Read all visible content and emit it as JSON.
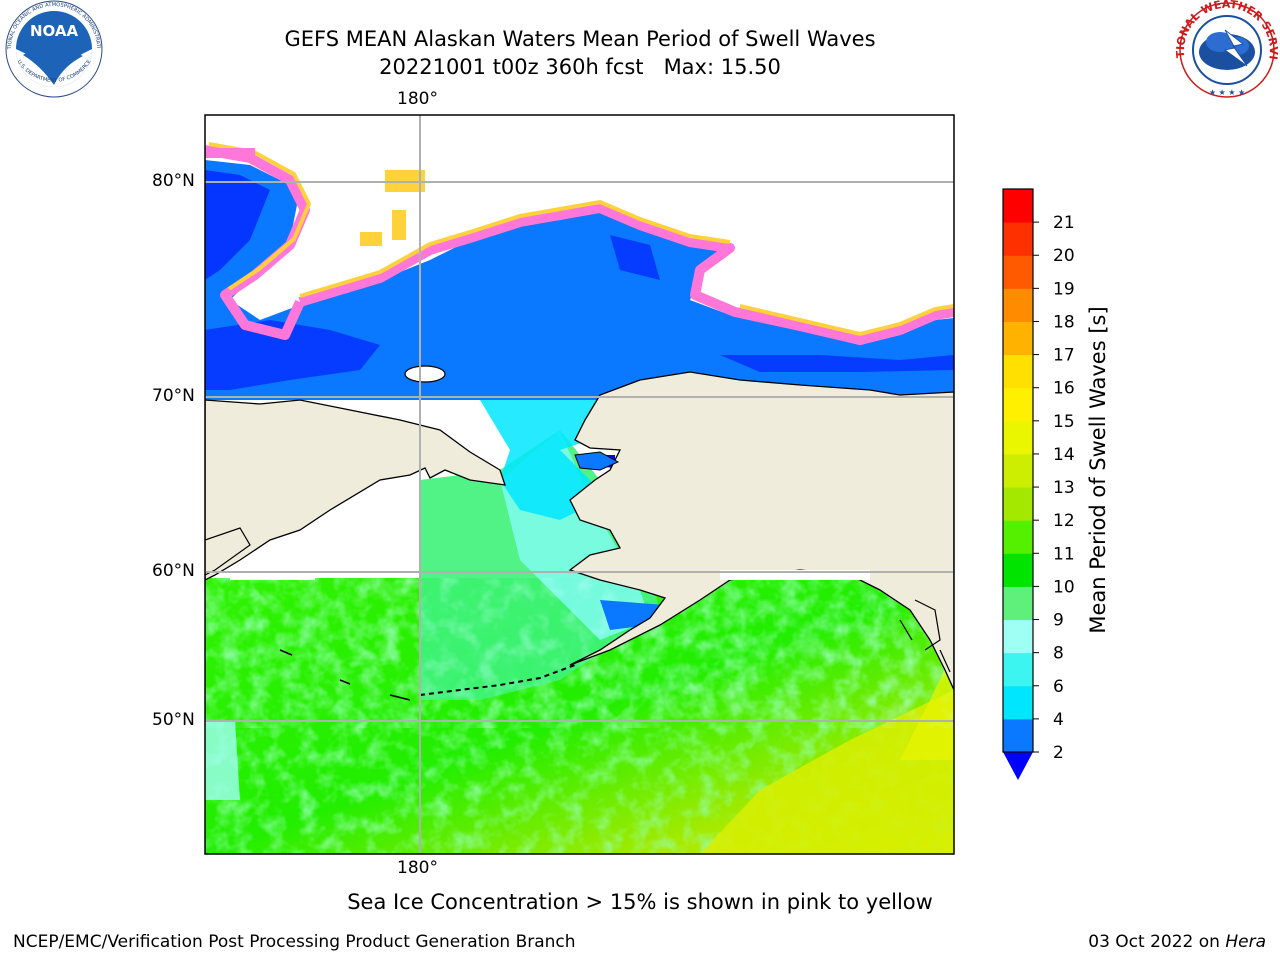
{
  "title": {
    "line1": "GEFS MEAN Alaskan Waters Mean Period of Swell Waves",
    "line2": "20221001 t00z 360h fcst   Max: 15.50"
  },
  "map": {
    "lon_labels": {
      "top": "180°",
      "bottom": "180°"
    },
    "lat_labels": [
      "80°N",
      "70°N",
      "60°N",
      "50°N"
    ]
  },
  "colorbar": {
    "title": "Mean Period of Swell Waves [s]",
    "ticks": [
      "2",
      "4",
      "6",
      "8",
      "9",
      "10",
      "11",
      "12",
      "13",
      "14",
      "15",
      "16",
      "17",
      "18",
      "19",
      "20",
      "21"
    ],
    "colors": [
      "#0a78ff",
      "#00e6ff",
      "#3cf5f0",
      "#a0fff5",
      "#5ef07a",
      "#00e400",
      "#55ef00",
      "#a4e800",
      "#cdee00",
      "#eaf500",
      "#fff000",
      "#ffe000",
      "#ffb300",
      "#ff8c00",
      "#ff5a00",
      "#ff3000",
      "#ff0000"
    ],
    "under_color": "#0000ff"
  },
  "footer_note": "Sea Ice Concentration > 15% is shown in pink to yellow",
  "credit_left": "NCEP/EMC/Verification Post Processing Product Generation Branch",
  "credit_right": {
    "date": "03 Oct 2022 on",
    "host": "Hera"
  },
  "logos": {
    "noaa": {
      "text": "NOAA",
      "ring_top": "NATIONAL OCEANIC AND ATMOSPHERIC ADMINISTRATION",
      "ring_bottom": "U.S. DEPARTMENT OF COMMERCE"
    },
    "nws": {
      "ring": "NATIONAL WEATHER SERVICE"
    }
  }
}
